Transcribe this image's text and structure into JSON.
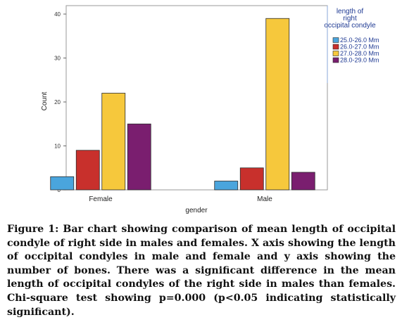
{
  "chart_data": {
    "type": "bar",
    "categories": [
      "Female",
      "Male"
    ],
    "series": [
      {
        "name": "25.0-26.0 Mm",
        "color": "#4aa5dd",
        "values": [
          3,
          2
        ]
      },
      {
        "name": "26.0-27.0 Mm",
        "color": "#c8302c",
        "values": [
          9,
          5
        ]
      },
      {
        "name": "27.0-28.0 Mm",
        "color": "#f6c83c",
        "values": [
          22,
          39
        ]
      },
      {
        "name": "28.0-29.0 Mm",
        "color": "#7a1e6f",
        "values": [
          15,
          4
        ]
      }
    ],
    "xlabel": "gender",
    "ylabel": "Count",
    "ylim": [
      0,
      40
    ],
    "yticks": [
      0,
      10,
      20,
      30,
      40
    ],
    "grid": false,
    "legend_title": "length of right occipital condyle",
    "legend_position": "right"
  },
  "caption": "Figure 1: Bar chart showing comparison of mean length of occipital condyle of right side in males and females. X axis showing the length of occipital condyles in male and female and y axis showing the number of bones. There was a significant difference in the mean length of occipital condyles of the right side in males than females. Chi-square test showing p=0.000 (p<0.05 indicating statistically significant)."
}
